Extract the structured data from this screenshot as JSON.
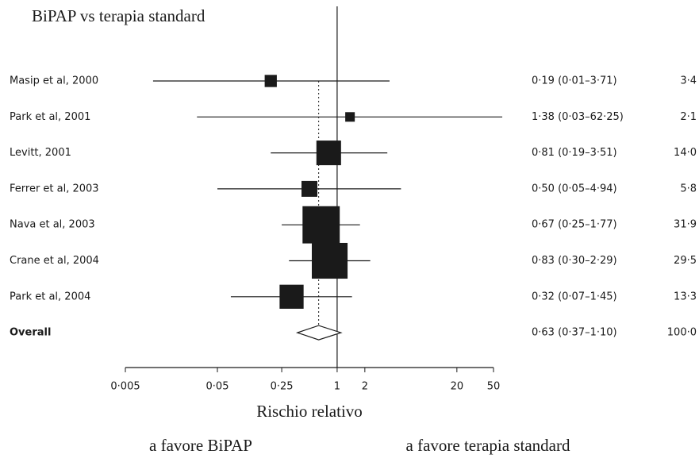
{
  "chart_data": {
    "type": "forest",
    "title": "BiPAP vs terapia standard",
    "x_label": "Rischio relativo",
    "annotations": [
      "a favore BiPAP",
      "a favore terapia standard"
    ],
    "categories": [
      "Masip et al, 2000",
      "Park et al, 2001",
      "Levitt, 2001",
      "Ferrer et al, 2003",
      "Nava et al, 2003",
      "Crane et al, 2004",
      "Park et al, 2004",
      "Overall"
    ],
    "values": [
      0.19,
      1.38,
      0.81,
      0.5,
      0.67,
      0.83,
      0.32,
      0.63
    ],
    "ci_low": [
      0.01,
      0.03,
      0.19,
      0.05,
      0.25,
      0.3,
      0.07,
      0.37
    ],
    "ci_high": [
      3.71,
      62.25,
      3.51,
      4.94,
      1.77,
      2.29,
      1.45,
      1.1
    ],
    "value_labels": [
      "0·19 (0·01–3·71)",
      "1·38 (0·03–62·25)",
      "0·81 (0·19–3·51)",
      "0·50 (0·05–4·94)",
      "0·67 (0·25–1·77)",
      "0·83 (0·30–2·29)",
      "0·32 (0·07–1·45)",
      "0·63 (0·37–1·10)"
    ],
    "weights": [
      3.4,
      2.1,
      14.0,
      5.8,
      31.9,
      29.5,
      13.3,
      100.0
    ],
    "weight_labels": [
      "3·4",
      "2·1",
      "14·0",
      "5·8",
      "31·9",
      "29·5",
      "13·3",
      "100·0"
    ],
    "log_x": true,
    "reference": 1,
    "xlim": [
      0.005,
      50
    ],
    "xticks": [
      {
        "value": 0.005,
        "label": "0·005"
      },
      {
        "value": 0.05,
        "label": "0·05"
      },
      {
        "value": 0.25,
        "label": "0·25"
      },
      1,
      2,
      20,
      50
    ],
    "color": "#1a1a1a"
  }
}
